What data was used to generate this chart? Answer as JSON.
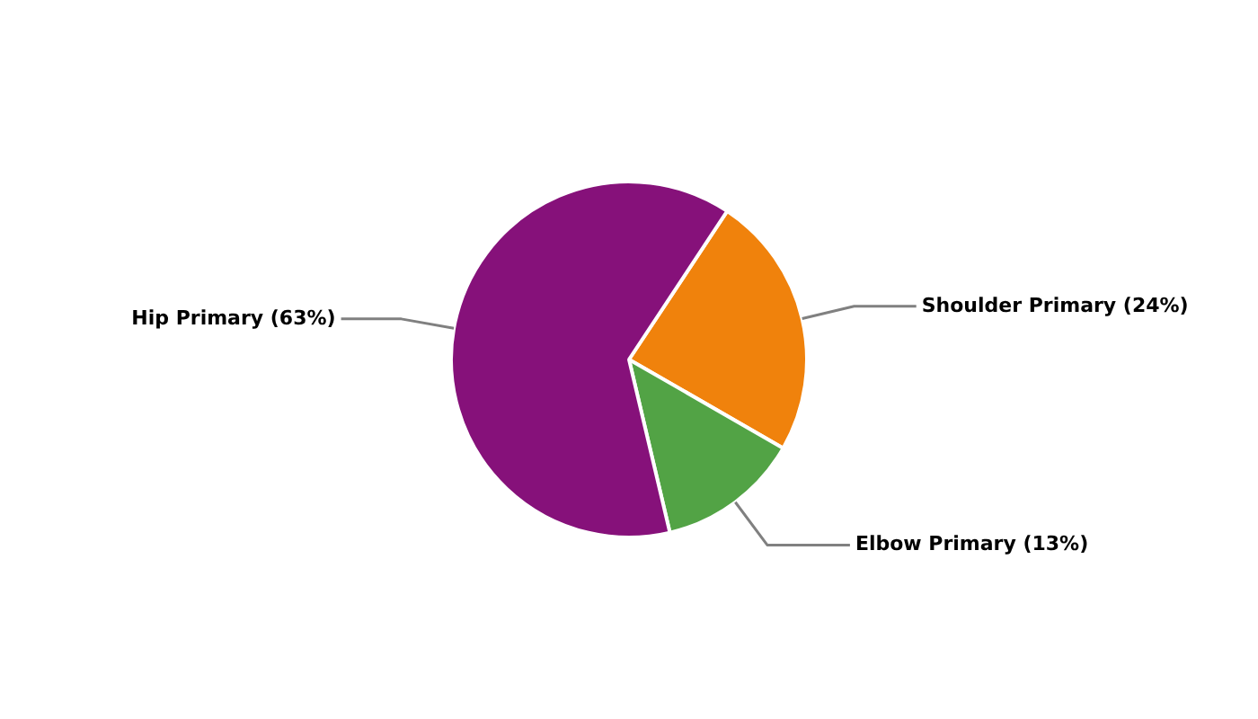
{
  "chart_data": {
    "type": "pie",
    "categories": [
      "Shoulder Primary",
      "Elbow Primary",
      "Hip Primary"
    ],
    "values": [
      24,
      13,
      63
    ],
    "colors": [
      "#f0820c",
      "#52a345",
      "#86117a"
    ],
    "value_labels": [
      "(24%)",
      "(13%)",
      "(63%)"
    ]
  }
}
